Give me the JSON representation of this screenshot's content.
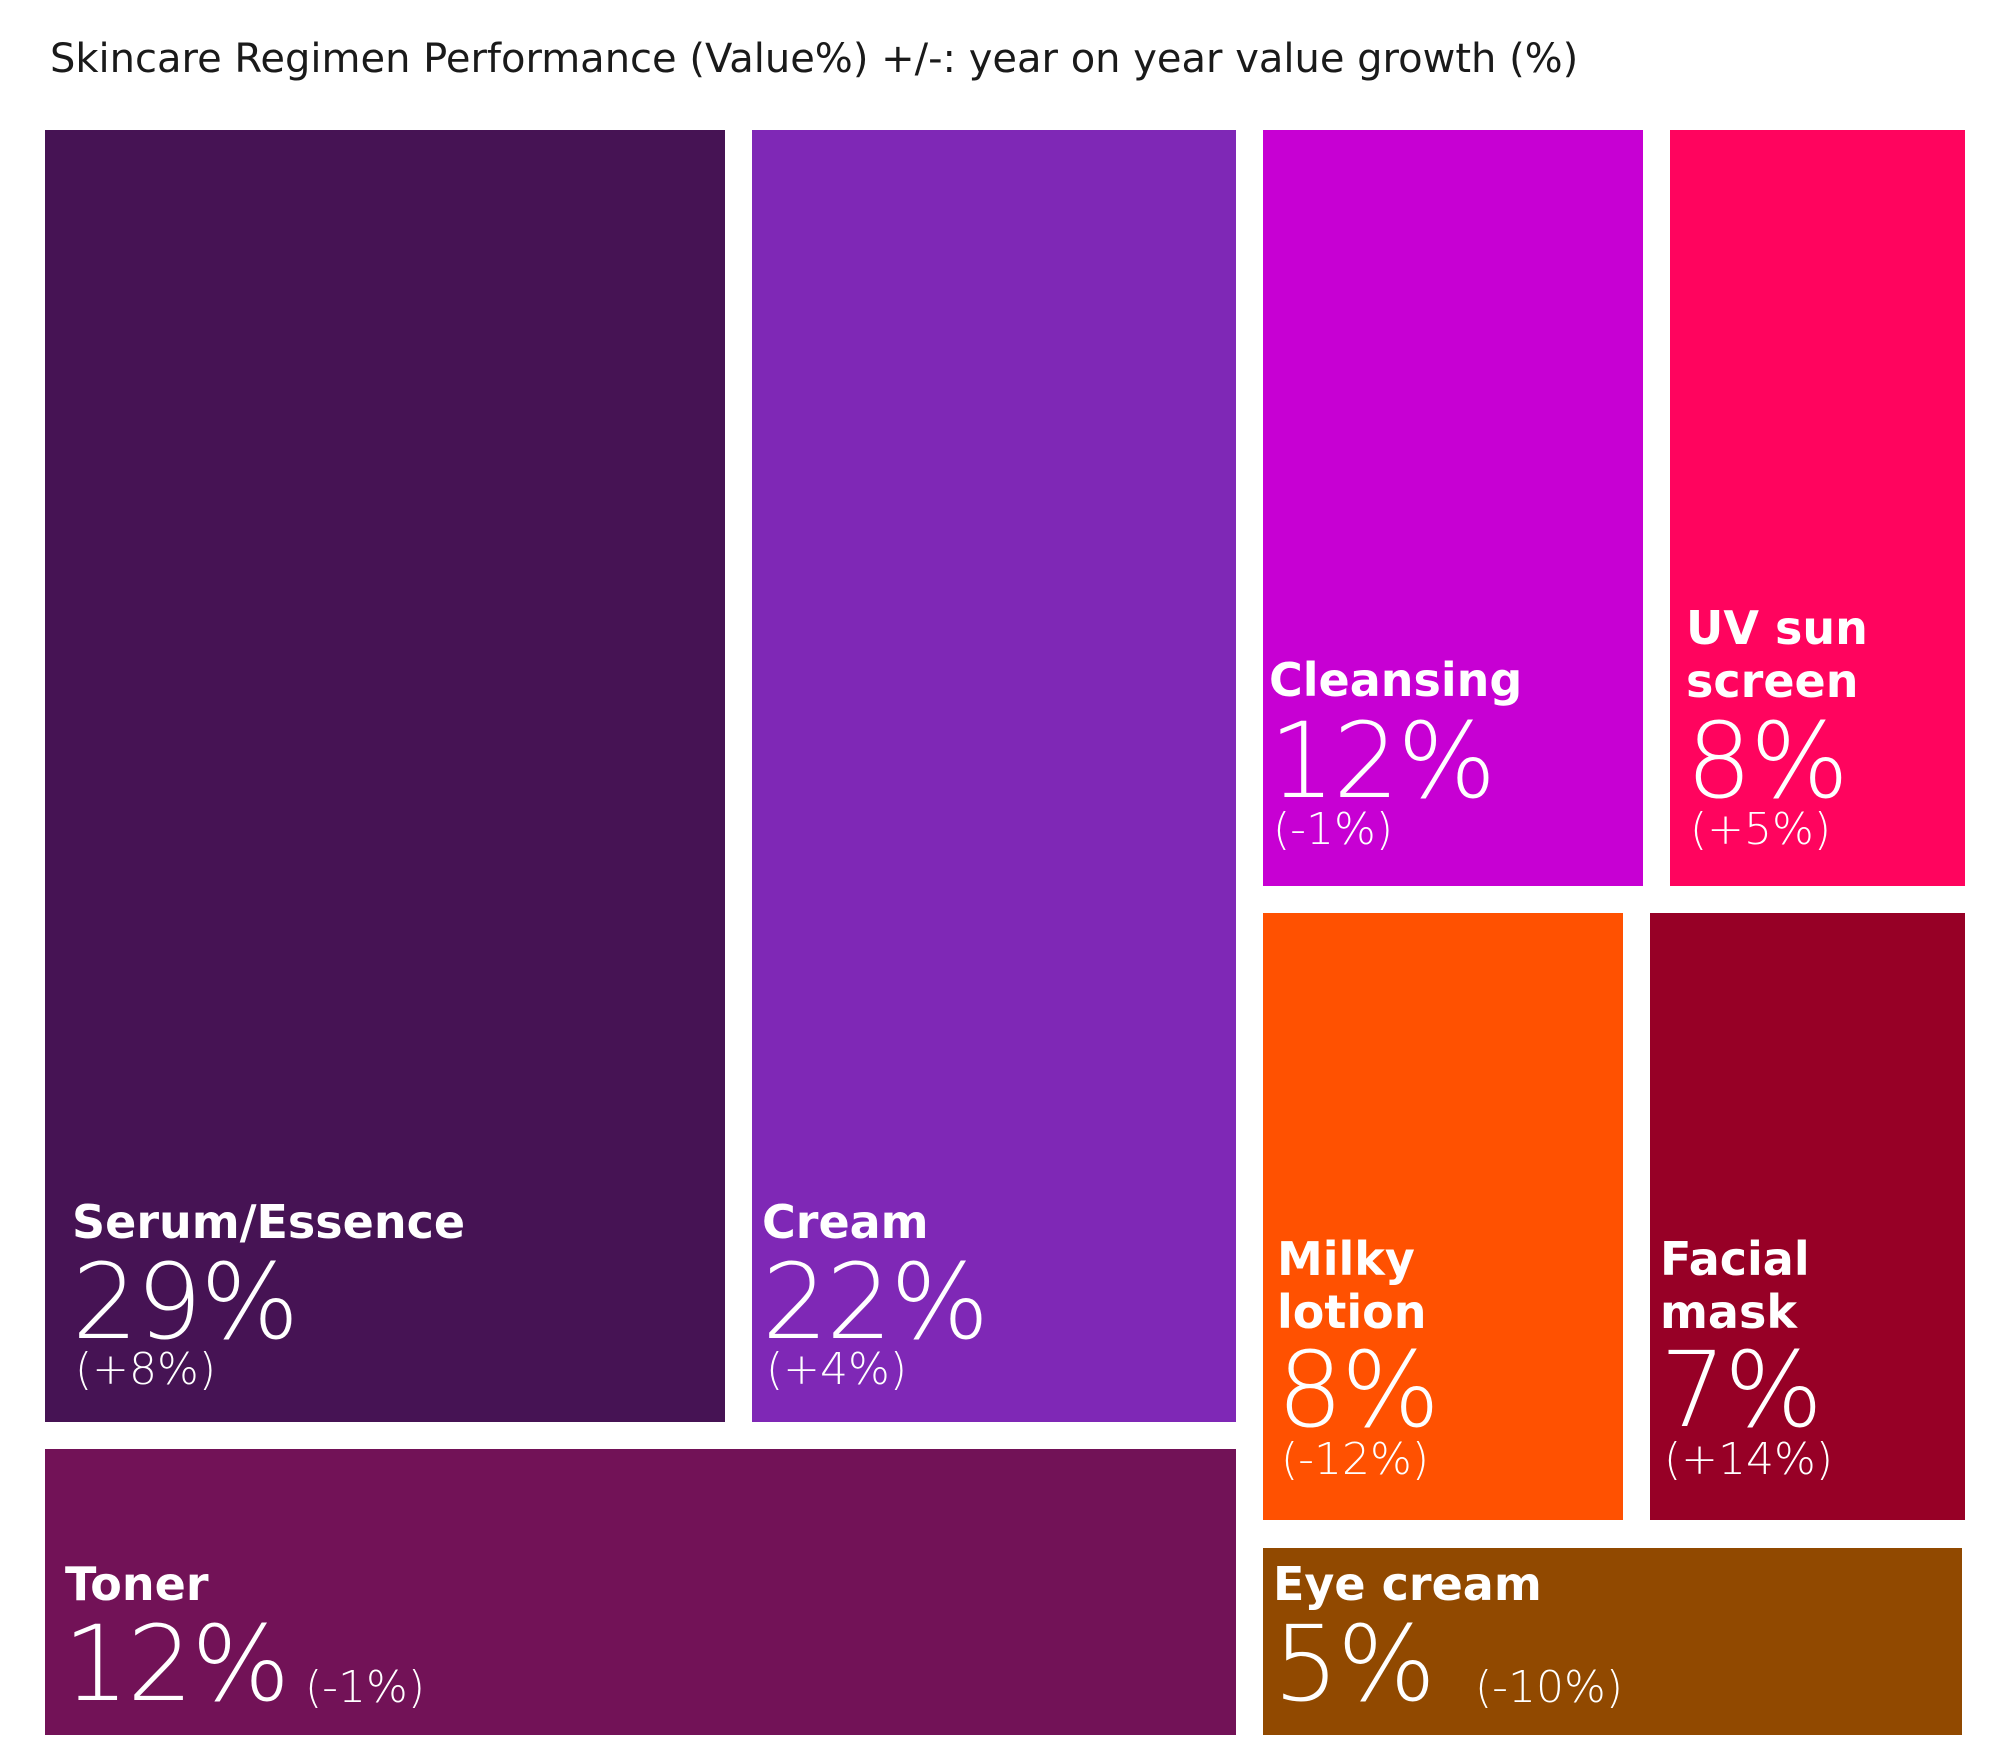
{
  "chart_data": {
    "type": "treemap",
    "title": "Skincare Regimen Performance (Value%) +/-: year on year value growth (%)",
    "items": [
      {
        "id": "serum",
        "label": "Serum/Essence",
        "value": 29,
        "value_text": "29%",
        "change": 8,
        "change_text": "(+8%)",
        "color": "#461354"
      },
      {
        "id": "cream",
        "label": "Cream",
        "value": 22,
        "value_text": "22%",
        "change": 4,
        "change_text": "(+4%)",
        "color": "#7f28b6"
      },
      {
        "id": "cleansing",
        "label": "Cleansing",
        "value": 12,
        "value_text": "12%",
        "change": -1,
        "change_text": "(-1%)",
        "color": "#c700d3"
      },
      {
        "id": "uv",
        "label": "UV sun\nscreen",
        "value": 8,
        "value_text": "8%",
        "change": 5,
        "change_text": "(+5%)",
        "color": "#ff045e"
      },
      {
        "id": "milky",
        "label": "Milky\nlotion",
        "value": 8,
        "value_text": "8%",
        "change": -12,
        "change_text": "(-12%)",
        "color": "#ff5101"
      },
      {
        "id": "mask",
        "label": "Facial\nmask",
        "value": 7,
        "value_text": "7%",
        "change": 14,
        "change_text": "(+14%)",
        "color": "#970026"
      },
      {
        "id": "toner",
        "label": "Toner",
        "value": 12,
        "value_text": "12%",
        "change": -1,
        "change_text": "(-1%)",
        "color": "#721257"
      },
      {
        "id": "eye",
        "label": "Eye cream",
        "value": 5,
        "value_text": "5%",
        "change": -10,
        "change_text": "(-10%)",
        "color": "#914900"
      }
    ]
  }
}
